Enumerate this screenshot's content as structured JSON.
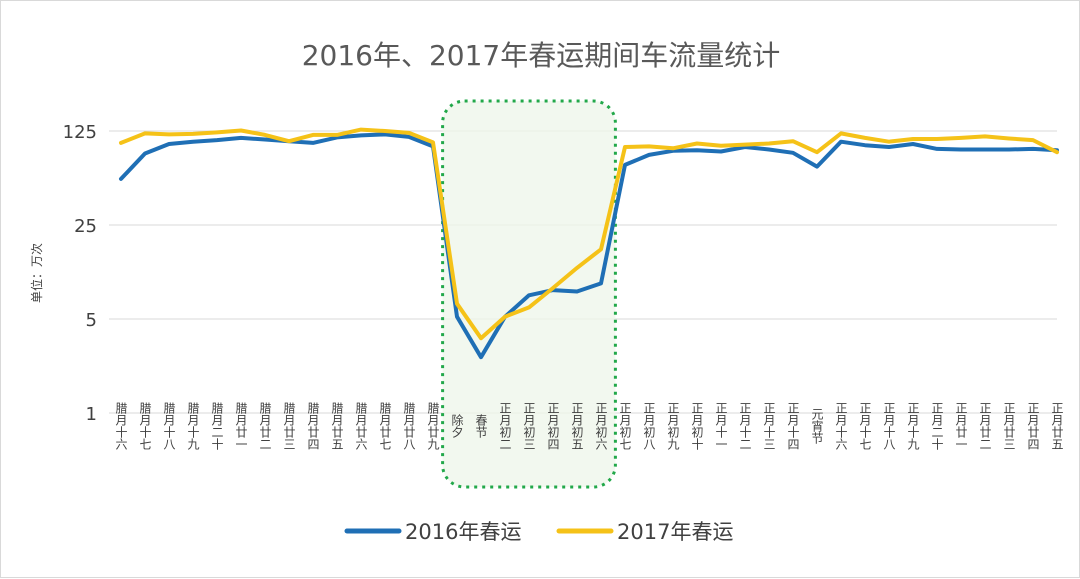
{
  "chart_data": {
    "type": "line",
    "title": "2016年、2017年春运期间车流量统计",
    "ylabel": "单位：万次",
    "xlabel": "",
    "y_scale": "log",
    "ylim": [
      1,
      250
    ],
    "y_ticks": [
      1,
      5,
      25,
      125
    ],
    "y_tick_labels": [
      "1",
      "5",
      "25",
      "125"
    ],
    "grid": true,
    "legend_position": "bottom",
    "categories": [
      "腊月十六",
      "腊月十七",
      "腊月十八",
      "腊月十九",
      "腊月二十",
      "腊月廿一",
      "腊月廿二",
      "腊月廿三",
      "腊月廿四",
      "腊月廿五",
      "腊月廿六",
      "腊月廿七",
      "腊月廿八",
      "腊月廿九",
      "除夕",
      "春节",
      "正月初二",
      "正月初三",
      "正月初四",
      "正月初五",
      "正月初六",
      "正月初七",
      "正月初八",
      "正月初九",
      "正月初十",
      "正月十一",
      "正月十二",
      "正月十三",
      "正月十四",
      "元宵节",
      "正月十六",
      "正月十七",
      "正月十八",
      "正月十九",
      "正月二十",
      "正月廿一",
      "正月廿二",
      "正月廿三",
      "正月廿四",
      "正月廿五"
    ],
    "series": [
      {
        "name": "2016年春运",
        "color": "#1f6fb5",
        "values": [
          55,
          85,
          100,
          104,
          107,
          111,
          108,
          105,
          102,
          112,
          116,
          118,
          113,
          96,
          5.2,
          2.6,
          5.2,
          7.5,
          8.2,
          8.0,
          9.2,
          70,
          83,
          89,
          90,
          88,
          95,
          91,
          86,
          68,
          104,
          98,
          95,
          100,
          92,
          91,
          91,
          91,
          92,
          90
        ]
      },
      {
        "name": "2017年春运",
        "color": "#f5c218",
        "values": [
          102,
          120,
          118,
          119,
          122,
          126,
          117,
          105,
          117,
          117,
          128,
          125,
          121,
          103,
          6.5,
          3.6,
          5.2,
          6.1,
          8.5,
          12.0,
          16.5,
          95,
          96,
          93,
          101,
          97,
          99,
          101,
          105,
          87,
          120,
          111,
          104,
          109,
          109,
          111,
          114,
          110,
          107,
          87
        ]
      }
    ]
  }
}
